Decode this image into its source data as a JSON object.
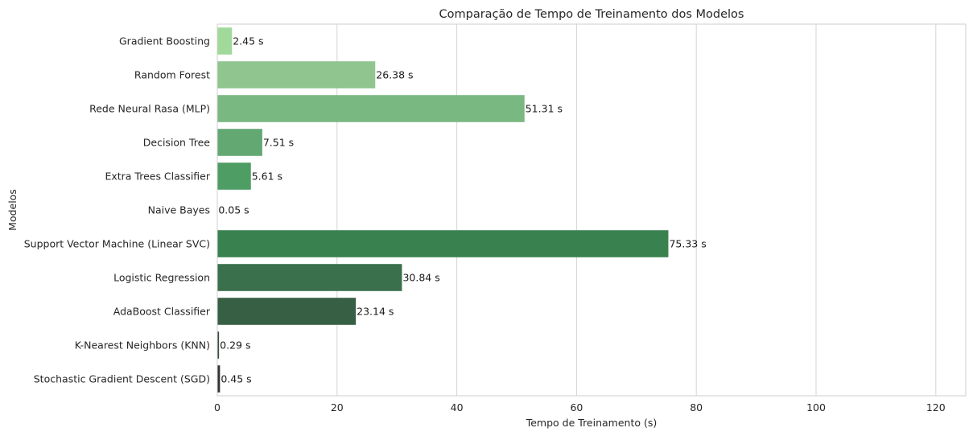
{
  "chart_data": {
    "type": "bar",
    "orientation": "horizontal",
    "title": "Comparação de Tempo de Treinamento dos Modelos",
    "xlabel": "Tempo de Treinamento (s)",
    "ylabel": "Modelos",
    "xlim": [
      0,
      125
    ],
    "x_ticks": [
      0,
      20,
      40,
      60,
      80,
      100,
      120
    ],
    "grid": "vertical",
    "categories": [
      "Gradient Boosting",
      "Random Forest",
      "Rede Neural Rasa (MLP)",
      "Decision Tree",
      "Extra Trees Classifier",
      "Naive Bayes",
      "Support Vector Machine (Linear SVC)",
      "Logistic Regression",
      "AdaBoost Classifier",
      "K-Nearest Neighbors (KNN)",
      "Stochastic Gradient Descent (SGD)"
    ],
    "values": [
      2.45,
      26.38,
      51.31,
      7.51,
      5.61,
      0.05,
      75.33,
      30.84,
      23.14,
      0.29,
      0.45
    ],
    "value_labels": [
      "2.45 s",
      "26.38 s",
      "51.31 s",
      "7.51 s",
      "5.61 s",
      "0.05 s",
      "75.33 s",
      "30.84 s",
      "23.14 s",
      "0.29 s",
      "0.45 s"
    ],
    "colors": [
      "#a1d99b",
      "#90c58f",
      "#7ab882",
      "#63a873",
      "#4e9d65",
      "#3d8c5a",
      "#3a8150",
      "#3a704c",
      "#375f44",
      "#364d3a",
      "#333333"
    ]
  }
}
